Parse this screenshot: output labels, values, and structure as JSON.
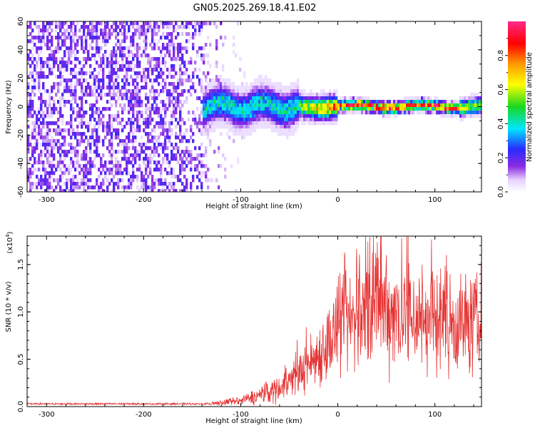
{
  "title": "GN05.2025.269.18.41.E02",
  "chart_data": [
    {
      "type": "heatmap",
      "name": "spectrogram",
      "xlabel": "Height of straight line (km)",
      "ylabel": "Frequency (Hz)",
      "xlim": [
        -320,
        148
      ],
      "ylim": [
        -60,
        60
      ],
      "xticks": [
        -300,
        -200,
        -100,
        0,
        100
      ],
      "yticks": [
        -60,
        -40,
        -20,
        0,
        20,
        40,
        60
      ],
      "xtick_labels": [
        "-300",
        "-200",
        "-100",
        "0",
        "100"
      ],
      "ytick_labels": [
        "-60",
        "-40",
        "-20",
        "0",
        "20",
        "40",
        "60"
      ],
      "colorbar": {
        "label": "Normalized spectral amplitude",
        "range": [
          0,
          1
        ],
        "ticks": [
          0.0,
          0.2,
          0.4,
          0.6,
          0.8
        ],
        "tick_labels": [
          "0.0",
          "0.2",
          "0.4",
          "0.6",
          "0.8"
        ],
        "colormap": "rainbow (white-violet-blue-cyan-green-yellow-orange-red-magenta)"
      },
      "features": {
        "noise_region_x": [
          -320,
          -130
        ],
        "noise_level": 0.15,
        "signal_start_x": -140,
        "signal_center_freq": 0,
        "max_amplitude_region_x": [
          0,
          120
        ],
        "max_amplitude": 0.85
      }
    },
    {
      "type": "line",
      "name": "snr",
      "xlabel": "Height of straight line (km)",
      "ylabel": "SNR (10 * v/v)",
      "multiplier_label": "(x10",
      "multiplier_exponent": "4",
      "multiplier_close": ")",
      "xlim": [
        -320,
        148
      ],
      "ylim": [
        0,
        1.8
      ],
      "xticks": [
        -300,
        -200,
        -100,
        0,
        100
      ],
      "yticks": [
        0,
        0.5,
        1.0,
        1.5
      ],
      "xtick_labels": [
        "-300",
        "-200",
        "-100",
        "0",
        "100"
      ],
      "ytick_labels": [
        "0.0",
        "0.5",
        "1.0",
        "1.5"
      ],
      "color": "#e53333",
      "envelope_points": [
        {
          "x": -320,
          "y": 0.02
        },
        {
          "x": -200,
          "y": 0.02
        },
        {
          "x": -130,
          "y": 0.03
        },
        {
          "x": -100,
          "y": 0.06
        },
        {
          "x": -80,
          "y": 0.12
        },
        {
          "x": -60,
          "y": 0.2
        },
        {
          "x": -40,
          "y": 0.35
        },
        {
          "x": -20,
          "y": 0.55
        },
        {
          "x": 0,
          "y": 0.8
        },
        {
          "x": 20,
          "y": 0.95
        },
        {
          "x": 40,
          "y": 1.05
        },
        {
          "x": 60,
          "y": 1.0
        },
        {
          "x": 80,
          "y": 0.95
        },
        {
          "x": 100,
          "y": 0.92
        },
        {
          "x": 120,
          "y": 0.9
        },
        {
          "x": 148,
          "y": 0.85
        }
      ],
      "peaks": [
        {
          "x": 33,
          "y": 1.79
        },
        {
          "x": 50,
          "y": 1.6
        },
        {
          "x": 112,
          "y": 1.6
        },
        {
          "x": 22,
          "y": 1.45
        },
        {
          "x": 141,
          "y": 1.3
        },
        {
          "x": 68,
          "y": 1.3
        },
        {
          "x": -10,
          "y": 0.98
        }
      ]
    }
  ]
}
